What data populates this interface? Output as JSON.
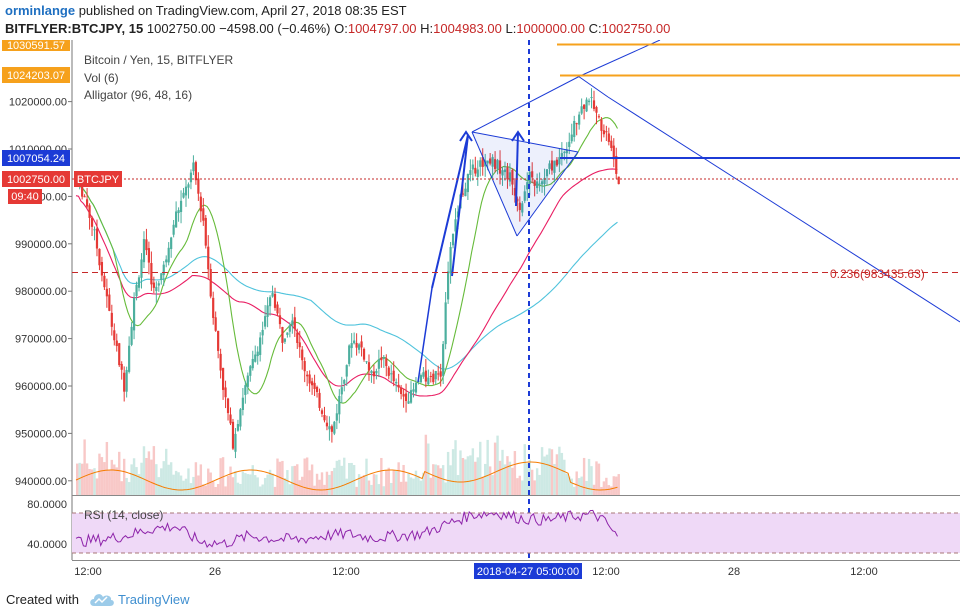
{
  "header": {
    "author": "orminlange",
    "published_text": "published on TradingView.com, April 27, 2018 08:35 EST",
    "symbol": "BITFLYER:BTCJPY, 15",
    "last": "1002750.00",
    "change": "−4598.00 (−0.46%)",
    "open_label": "O:",
    "open": "1004797.00",
    "high_label": "H:",
    "high": "1004983.00",
    "low_label": "L:",
    "low": "1000000.00",
    "close_label": "C:",
    "close": "1002750.00"
  },
  "legend": {
    "title": "Bitcoin / Yen, 15, BITFLYER",
    "vol": "Vol (6)",
    "alligator": "Alligator (96, 48, 16)",
    "rsi": "RSI (14, close)"
  },
  "price_badges": {
    "top_orange": "1030591.57",
    "orange": "1024203.07",
    "blue": "1007054.24",
    "last": "1002750.00",
    "symbol_tag": "BTCJPY",
    "countdown": "09:40"
  },
  "fib_label": "0.236(983435.63)",
  "crosshair_date": "2018-04-27 05:00:00",
  "footer": {
    "made_with": "Created with",
    "brand": "TradingView"
  },
  "colors": {
    "up": "#4caf9e",
    "down": "#e53935",
    "ma_red": "#e91e63",
    "ma_teal": "#4fc3dc",
    "ma_green": "#66bb3a",
    "drawing": "#1c3bd6",
    "orange": "#f6a11c",
    "rsi_fill": "#efd9f7",
    "rsi_line": "#8e24aa",
    "vol_ma": "#f57c00"
  },
  "chart_data": {
    "type": "candlestick",
    "y_axis": {
      "ylim": [
        937000,
        1033000
      ],
      "tick_labels": [
        "1020000.00",
        "1010000.00",
        "1000000.00",
        "990000.00",
        "980000.00",
        "970000.00",
        "960000.00",
        "950000.00",
        "940000.00"
      ],
      "tick_values": [
        1020000,
        1010000,
        1000000,
        990000,
        980000,
        970000,
        960000,
        950000,
        940000
      ]
    },
    "x_axis": {
      "tick_labels": [
        "12:00",
        "26",
        "12:00",
        "12:00",
        "28",
        "12:00"
      ]
    },
    "price_levels": [
      {
        "name": "top_orange",
        "value": 1030591.57
      },
      {
        "name": "orange",
        "value": 1024203.07
      },
      {
        "name": "blue",
        "value": 1007054.24
      },
      {
        "name": "last",
        "value": 1002750.0
      },
      {
        "name": "fib_0.236",
        "value": 983435.63
      }
    ],
    "approx_price_path": [
      [
        0,
        1004000
      ],
      [
        4,
        1000000
      ],
      [
        8,
        992000
      ],
      [
        12,
        981000
      ],
      [
        16,
        970000
      ],
      [
        20,
        960000
      ],
      [
        24,
        978000
      ],
      [
        28,
        990000
      ],
      [
        32,
        980000
      ],
      [
        36,
        985000
      ],
      [
        40,
        995000
      ],
      [
        44,
        1000000
      ],
      [
        48,
        1006000
      ],
      [
        52,
        995000
      ],
      [
        56,
        975000
      ],
      [
        60,
        960000
      ],
      [
        64,
        948000
      ],
      [
        68,
        958000
      ],
      [
        72,
        965000
      ],
      [
        76,
        972000
      ],
      [
        80,
        980000
      ],
      [
        84,
        970000
      ],
      [
        88,
        975000
      ],
      [
        92,
        965000
      ],
      [
        96,
        960000
      ],
      [
        100,
        955000
      ],
      [
        104,
        950000
      ],
      [
        108,
        960000
      ],
      [
        112,
        970000
      ],
      [
        116,
        968000
      ],
      [
        120,
        962000
      ],
      [
        124,
        966000
      ],
      [
        128,
        962000
      ],
      [
        132,
        958000
      ],
      [
        136,
        958000
      ],
      [
        140,
        962000
      ],
      [
        144,
        961000
      ],
      [
        148,
        963000
      ],
      [
        152,
        990000
      ],
      [
        156,
        1000000
      ],
      [
        160,
        1005000
      ],
      [
        164,
        1007000
      ],
      [
        168,
        1008000
      ],
      [
        172,
        1006000
      ],
      [
        176,
        1004000
      ],
      [
        180,
        998000
      ],
      [
        184,
        1004000
      ],
      [
        188,
        1002000
      ],
      [
        192,
        1006000
      ],
      [
        196,
        1008000
      ],
      [
        200,
        1012000
      ],
      [
        204,
        1018000
      ],
      [
        208,
        1021000
      ],
      [
        212,
        1016000
      ],
      [
        216,
        1012000
      ],
      [
        220,
        1002750
      ]
    ],
    "rsi": {
      "levels": [
        "80.0000",
        "40.0000"
      ],
      "level_values": [
        80,
        40
      ],
      "ylim": [
        23,
        85
      ],
      "approx_values": [
        [
          0,
          42
        ],
        [
          10,
          44
        ],
        [
          20,
          48
        ],
        [
          30,
          55
        ],
        [
          40,
          58
        ],
        [
          50,
          42
        ],
        [
          60,
          40
        ],
        [
          70,
          48
        ],
        [
          80,
          45
        ],
        [
          90,
          44
        ],
        [
          100,
          48
        ],
        [
          110,
          50
        ],
        [
          120,
          46
        ],
        [
          130,
          48
        ],
        [
          140,
          50
        ],
        [
          150,
          60
        ],
        [
          160,
          70
        ],
        [
          170,
          72
        ],
        [
          180,
          66
        ],
        [
          190,
          64
        ],
        [
          200,
          68
        ],
        [
          210,
          70
        ],
        [
          215,
          60
        ],
        [
          220,
          42
        ]
      ]
    }
  }
}
